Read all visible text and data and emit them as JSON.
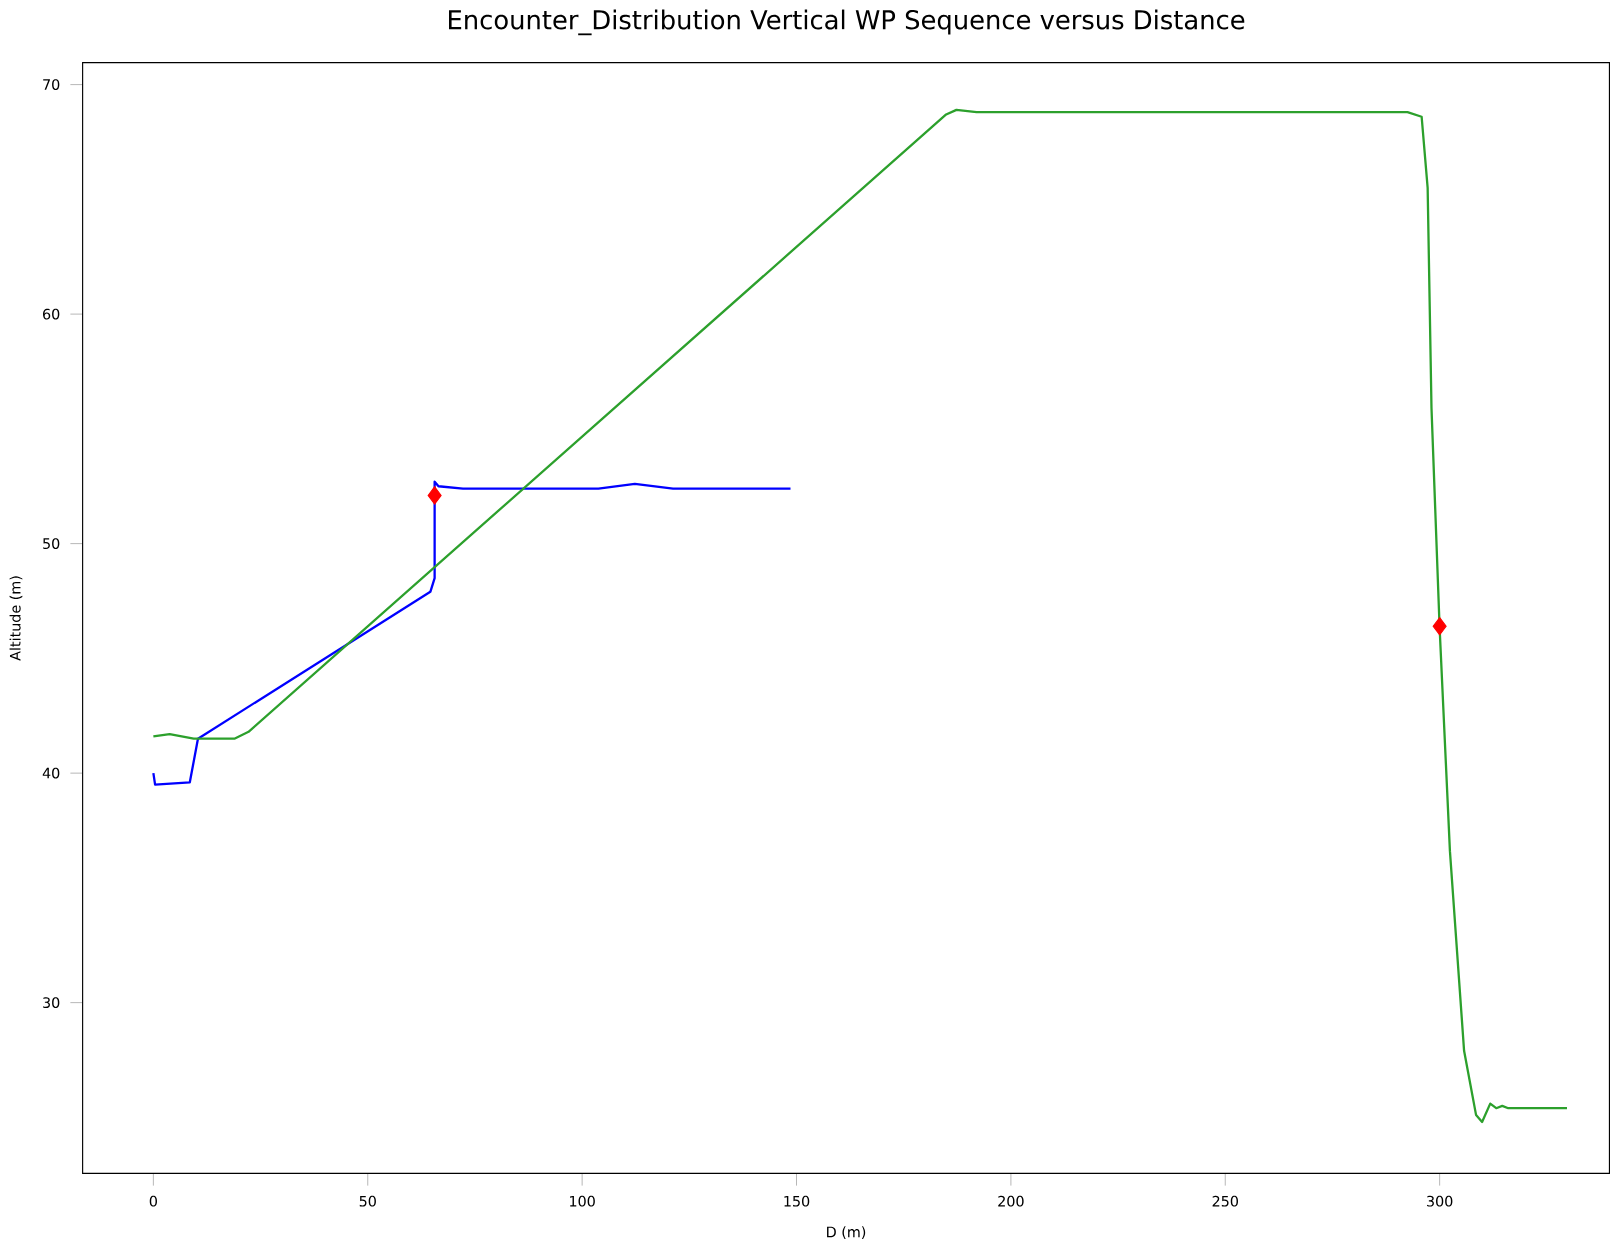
{
  "chart_data": {
    "type": "line",
    "title": "Encounter_Distribution Vertical WP Sequence versus Distance",
    "xlabel": "D (m)",
    "ylabel": "Altitude (m)",
    "xlim": [
      -16.5,
      339.6
    ],
    "ylim": [
      22.56,
      70.96
    ],
    "xticks": [
      0,
      50,
      100,
      150,
      200,
      250,
      300
    ],
    "yticks": [
      30,
      40,
      50,
      60,
      70
    ],
    "series": [
      {
        "color": "#0000ff",
        "marker": "none",
        "x": [
          0,
          0.4,
          8.5,
          10.4,
          64.6,
          65.6,
          65.6,
          66.5,
          72.2,
          103.8,
          112.3,
          121.2,
          148.6
        ],
        "values": [
          40,
          39.5,
          39.6,
          41.5,
          47.9,
          48.5,
          52.7,
          52.5,
          52.4,
          52.4,
          52.6,
          52.4,
          52.4
        ]
      },
      {
        "color": "#2ca02c",
        "marker": "none",
        "x": [
          0,
          3.8,
          9.4,
          18.9,
          22.2,
          184.9,
          187.3,
          192,
          292.5,
          295.8,
          297.2,
          298.1,
          300,
          302.4,
          305.7,
          308.5,
          309.9,
          311.8,
          313.2,
          314.6,
          316,
          329.7
        ],
        "values": [
          41.6,
          41.7,
          41.5,
          41.5,
          41.8,
          68.7,
          68.9,
          68.8,
          68.8,
          68.6,
          65.5,
          55.9,
          46.3,
          36.6,
          27.9,
          25.1,
          24.8,
          25.6,
          25.4,
          25.5,
          25.4,
          25.4
        ]
      },
      {
        "type": "scatter",
        "color": "#ff0000",
        "marker": "diamond",
        "x": [
          65.6,
          300
        ],
        "values": [
          52.1,
          46.4
        ]
      }
    ]
  }
}
